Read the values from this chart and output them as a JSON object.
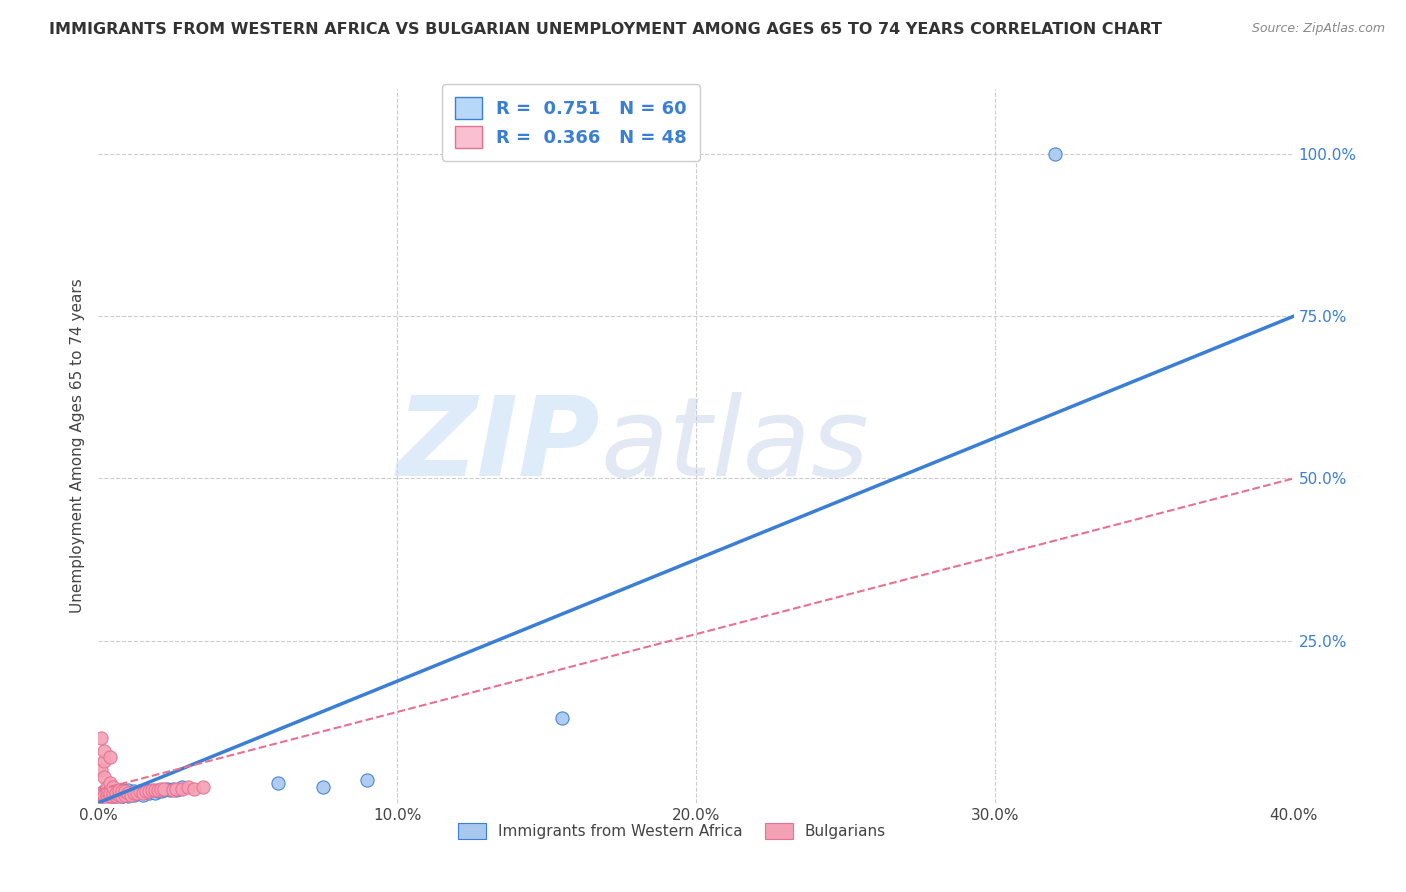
{
  "title": "IMMIGRANTS FROM WESTERN AFRICA VS BULGARIAN UNEMPLOYMENT AMONG AGES 65 TO 74 YEARS CORRELATION CHART",
  "source": "Source: ZipAtlas.com",
  "ylabel": "Unemployment Among Ages 65 to 74 years",
  "xlim": [
    0.0,
    0.4
  ],
  "ylim": [
    0.0,
    1.1
  ],
  "xtick_labels": [
    "0.0%",
    "10.0%",
    "20.0%",
    "30.0%",
    "40.0%"
  ],
  "xtick_vals": [
    0.0,
    0.1,
    0.2,
    0.3,
    0.4
  ],
  "ytick_labels": [
    "25.0%",
    "50.0%",
    "75.0%",
    "100.0%"
  ],
  "ytick_vals": [
    0.25,
    0.5,
    0.75,
    1.0
  ],
  "watermark_zip": "ZIP",
  "watermark_atlas": "atlas",
  "series1_color": "#a8c8f0",
  "series2_color": "#f4a0b5",
  "line1_color": "#3a7fd5",
  "line2_color": "#e87090",
  "legend_box_color1": "#b8d8f8",
  "legend_box_color2": "#f8c0d0",
  "R1": 0.751,
  "N1": 60,
  "R2": 0.366,
  "N2": 48,
  "background_color": "#ffffff",
  "grid_color": "#cccccc",
  "line1_x0": 0.0,
  "line1_y0": 0.0,
  "line1_x1": 0.4,
  "line1_y1": 0.75,
  "line2_x0": 0.0,
  "line2_y0": 0.02,
  "line2_x1": 0.4,
  "line2_y1": 0.5,
  "series1_x": [
    0.001,
    0.001,
    0.001,
    0.001,
    0.002,
    0.002,
    0.002,
    0.002,
    0.002,
    0.003,
    0.003,
    0.003,
    0.003,
    0.004,
    0.004,
    0.004,
    0.005,
    0.005,
    0.005,
    0.005,
    0.005,
    0.006,
    0.006,
    0.006,
    0.007,
    0.007,
    0.007,
    0.008,
    0.008,
    0.008,
    0.009,
    0.009,
    0.01,
    0.01,
    0.01,
    0.011,
    0.012,
    0.012,
    0.013,
    0.014,
    0.015,
    0.015,
    0.016,
    0.017,
    0.018,
    0.019,
    0.02,
    0.021,
    0.022,
    0.023,
    0.024,
    0.025,
    0.026,
    0.027,
    0.028,
    0.06,
    0.075,
    0.09,
    0.155,
    0.32
  ],
  "series1_y": [
    0.005,
    0.008,
    0.01,
    0.015,
    0.005,
    0.008,
    0.01,
    0.015,
    0.018,
    0.005,
    0.008,
    0.012,
    0.018,
    0.008,
    0.012,
    0.018,
    0.005,
    0.008,
    0.01,
    0.013,
    0.018,
    0.006,
    0.01,
    0.015,
    0.008,
    0.012,
    0.018,
    0.01,
    0.015,
    0.02,
    0.012,
    0.018,
    0.01,
    0.015,
    0.02,
    0.015,
    0.012,
    0.018,
    0.015,
    0.018,
    0.012,
    0.02,
    0.02,
    0.015,
    0.018,
    0.015,
    0.018,
    0.018,
    0.02,
    0.022,
    0.02,
    0.022,
    0.02,
    0.022,
    0.025,
    0.03,
    0.025,
    0.035,
    0.13,
    1.0
  ],
  "series2_x": [
    0.001,
    0.001,
    0.001,
    0.001,
    0.001,
    0.002,
    0.002,
    0.002,
    0.002,
    0.002,
    0.003,
    0.003,
    0.003,
    0.003,
    0.004,
    0.004,
    0.004,
    0.004,
    0.005,
    0.005,
    0.005,
    0.006,
    0.006,
    0.007,
    0.007,
    0.008,
    0.008,
    0.009,
    0.009,
    0.01,
    0.011,
    0.012,
    0.013,
    0.014,
    0.015,
    0.016,
    0.017,
    0.018,
    0.019,
    0.02,
    0.021,
    0.022,
    0.025,
    0.026,
    0.028,
    0.03,
    0.032,
    0.035
  ],
  "series2_y": [
    0.005,
    0.01,
    0.015,
    0.05,
    0.1,
    0.008,
    0.012,
    0.04,
    0.065,
    0.08,
    0.008,
    0.012,
    0.018,
    0.025,
    0.01,
    0.015,
    0.03,
    0.07,
    0.01,
    0.015,
    0.025,
    0.01,
    0.015,
    0.012,
    0.02,
    0.01,
    0.018,
    0.012,
    0.018,
    0.015,
    0.012,
    0.015,
    0.015,
    0.018,
    0.015,
    0.018,
    0.018,
    0.02,
    0.02,
    0.02,
    0.022,
    0.022,
    0.02,
    0.022,
    0.022,
    0.025,
    0.022,
    0.025
  ]
}
